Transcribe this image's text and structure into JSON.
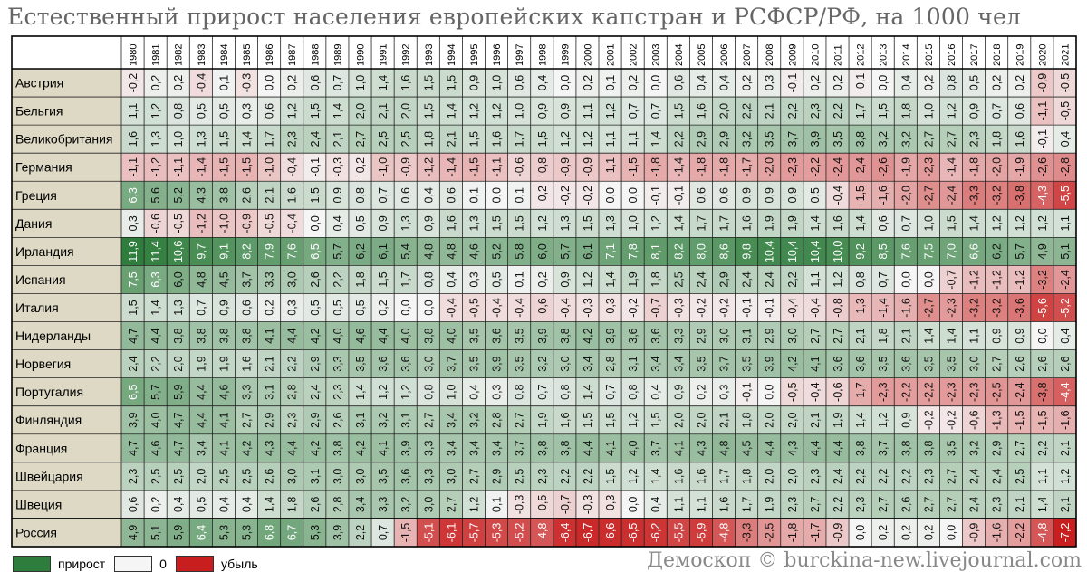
{
  "title": "Естественный прирост населения европейских капстран и РСФСР/РФ, на 1000 чел",
  "source": "Демоскоп © burckina-new.livejournal.com",
  "legend": {
    "positive_label": "прирост",
    "zero_label": "0",
    "negative_label": "убыль"
  },
  "colors": {
    "positive": "#2e7d3c",
    "zero": "#f5f5f5",
    "negative": "#c81e1e",
    "label_bg": "#ddd9c4",
    "grid": "#222222"
  },
  "chart_data": {
    "type": "heatmap",
    "title": "Естественный прирост населения европейских капстран и РСФСР/РФ, на 1000 чел",
    "years": [
      "1980",
      "1981",
      "1982",
      "1983",
      "1984",
      "1985",
      "1986",
      "1987",
      "1988",
      "1989",
      "1990",
      "1991",
      "1992",
      "1993",
      "1994",
      "1995",
      "1996",
      "1997",
      "1998",
      "1999",
      "2000",
      "2001",
      "2002",
      "2003",
      "2004",
      "2005",
      "2006",
      "2007",
      "2008",
      "2009",
      "2010",
      "2011",
      "2012",
      "2013",
      "2014",
      "2015",
      "2016",
      "2017",
      "2018",
      "2019",
      "2020",
      "2021"
    ],
    "color_scale": {
      "min": -7.2,
      "mid": 0,
      "max": 11.9
    },
    "rows": [
      {
        "name": "Австрия",
        "values": [
          -0.2,
          0.2,
          0.2,
          -0.4,
          0.1,
          -0.3,
          0.0,
          0.2,
          0.6,
          0.7,
          1.0,
          1.4,
          1.6,
          1.5,
          1.5,
          0.9,
          1.0,
          0.6,
          0.4,
          0.0,
          0.2,
          0.1,
          0.2,
          0.0,
          0.6,
          0.4,
          0.4,
          0.2,
          0.3,
          -0.1,
          0.2,
          0.2,
          -0.1,
          0.0,
          0.4,
          0.2,
          0.8,
          0.5,
          0.2,
          0.2,
          -0.9,
          -0.5
        ]
      },
      {
        "name": "Бельгия",
        "values": [
          1.1,
          1.2,
          0.8,
          0.5,
          0.5,
          0.3,
          0.6,
          1.2,
          1.5,
          1.4,
          2.0,
          2.1,
          2.0,
          1.5,
          1.4,
          1.2,
          1.2,
          1.0,
          0.9,
          0.9,
          1.1,
          1.2,
          0.7,
          0.7,
          1.5,
          1.6,
          2.0,
          2.2,
          2.1,
          2.2,
          2.3,
          2.2,
          1.7,
          1.5,
          1.8,
          1.0,
          1.2,
          0.9,
          0.7,
          0.6,
          -1.1,
          -0.5
        ]
      },
      {
        "name": "Великобритания",
        "values": [
          1.6,
          1.3,
          1.0,
          1.3,
          1.5,
          1.4,
          1.7,
          2.3,
          2.4,
          2.1,
          2.7,
          2.5,
          2.5,
          1.8,
          2.1,
          1.5,
          1.6,
          1.7,
          1.5,
          1.2,
          1.2,
          1.1,
          1.1,
          1.4,
          2.2,
          2.9,
          2.9,
          3.2,
          3.5,
          3.7,
          3.9,
          3.5,
          3.8,
          3.2,
          3.2,
          2.7,
          2.7,
          2.3,
          1.8,
          1.6,
          -0.1,
          0.4
        ]
      },
      {
        "name": "Германия",
        "values": [
          -1.1,
          -1.2,
          -1.1,
          -1.4,
          -1.5,
          -1.5,
          -1.0,
          -0.4,
          -0.1,
          -0.3,
          -0.2,
          -1.0,
          -0.9,
          -1.2,
          -1.4,
          -1.5,
          -1.1,
          -0.6,
          -0.8,
          -0.9,
          -0.9,
          -1.1,
          -1.5,
          -1.8,
          -1.4,
          -1.8,
          -1.8,
          -1.7,
          -2.0,
          -2.3,
          -2.2,
          -2.4,
          -2.4,
          -2.6,
          -1.9,
          -2.3,
          -1.4,
          -1.8,
          -2.0,
          -1.9,
          -2.6,
          -2.8
        ]
      },
      {
        "name": "Греция",
        "values": [
          6.3,
          5.6,
          5.2,
          4.3,
          3.8,
          2.6,
          2.1,
          1.6,
          1.5,
          0.9,
          0.8,
          0.7,
          0.6,
          0.4,
          0.6,
          0.1,
          0.0,
          0.1,
          -0.2,
          -0.2,
          -0.2,
          0.0,
          0.0,
          -0.1,
          -0.1,
          0.6,
          0.6,
          0.9,
          0.9,
          0.9,
          0.5,
          -0.4,
          -1.5,
          -1.6,
          -2.0,
          -2.7,
          -2.4,
          -3.3,
          -3.2,
          -3.8,
          -4.3,
          -5.5
        ]
      },
      {
        "name": "Дания",
        "values": [
          0.3,
          -0.6,
          -0.5,
          -1.2,
          -1.0,
          -0.9,
          -0.5,
          -0.4,
          0.0,
          0.4,
          0.5,
          0.9,
          1.3,
          0.9,
          1.6,
          1.3,
          1.5,
          1.5,
          1.2,
          1.3,
          1.5,
          1.3,
          1.0,
          1.2,
          1.4,
          1.7,
          1.7,
          1.6,
          1.9,
          1.9,
          1.4,
          1.6,
          1.4,
          0.6,
          0.7,
          1.0,
          1.5,
          1.4,
          1.2,
          1.2,
          1.2,
          1.1
        ]
      },
      {
        "name": "Ирландия",
        "values": [
          11.9,
          11.4,
          10.6,
          9.7,
          9.1,
          8.2,
          7.9,
          7.6,
          6.5,
          5.7,
          6.2,
          6.1,
          5.4,
          4.8,
          4.8,
          4.6,
          5.2,
          5.8,
          6.0,
          5.7,
          6.1,
          7.1,
          7.8,
          8.1,
          8.2,
          8.0,
          8.6,
          9.8,
          10.4,
          10.4,
          10.4,
          10.0,
          9.2,
          8.5,
          7.6,
          7.5,
          7.0,
          6.6,
          6.2,
          5.7,
          4.9,
          5.1
        ]
      },
      {
        "name": "Испания",
        "values": [
          7.5,
          6.3,
          6.0,
          4.8,
          4.5,
          3.7,
          3.3,
          3.0,
          2.6,
          2.2,
          1.8,
          1.5,
          1.7,
          0.8,
          0.4,
          0.3,
          0.5,
          0.1,
          0.2,
          0.9,
          1.2,
          1.4,
          1.9,
          1.8,
          2.5,
          2.4,
          2.9,
          2.4,
          2.4,
          2.2,
          1.1,
          1.2,
          0.8,
          0.7,
          0.0,
          0.0,
          -0.7,
          -1.2,
          -1.2,
          -1.2,
          -3.2,
          -2.4
        ]
      },
      {
        "name": "Италия",
        "values": [
          1.5,
          1.4,
          1.3,
          0.7,
          0.9,
          0.6,
          0.2,
          0.3,
          0.5,
          0.5,
          0.5,
          0.2,
          -0.0,
          0.0,
          -0.4,
          -0.5,
          -0.4,
          -0.4,
          -0.6,
          -0.4,
          -0.3,
          -0.3,
          -0.2,
          -0.7,
          -0.3,
          -0.2,
          -0.2,
          -0.1,
          -0.1,
          -0.4,
          -0.4,
          -0.8,
          -1.3,
          -1.4,
          -1.6,
          -2.7,
          -2.3,
          -3.2,
          -3.2,
          -3.6,
          -5.6,
          -5.2
        ]
      },
      {
        "name": "Нидерланды",
        "values": [
          4.7,
          4.4,
          3.8,
          3.8,
          3.8,
          3.8,
          4.1,
          4.4,
          4.2,
          4.0,
          4.6,
          4.4,
          4.0,
          3.8,
          4.0,
          3.5,
          3.6,
          3.5,
          3.9,
          3.8,
          4.2,
          3.9,
          3.6,
          3.6,
          3.3,
          2.9,
          3.0,
          3.1,
          2.9,
          3.0,
          2.7,
          2.7,
          2.1,
          1.8,
          2.1,
          1.4,
          1.4,
          1.1,
          0.9,
          0.9,
          0.0,
          0.4
        ]
      },
      {
        "name": "Норвегия",
        "values": [
          2.4,
          2.2,
          2.0,
          1.9,
          1.9,
          1.6,
          2.1,
          2.2,
          2.9,
          3.3,
          3.5,
          3.6,
          3.6,
          3.0,
          3.7,
          3.5,
          3.9,
          3.5,
          3.2,
          3.0,
          3.4,
          2.8,
          3.1,
          3.4,
          3.4,
          3.5,
          3.7,
          3.5,
          3.9,
          4.2,
          4.1,
          3.6,
          3.6,
          3.5,
          3.6,
          3.5,
          3.5,
          3.0,
          2.7,
          2.6,
          2.6,
          2.6
        ]
      },
      {
        "name": "Португалия",
        "values": [
          6.5,
          5.7,
          5.9,
          4.4,
          4.6,
          3.3,
          3.1,
          2.8,
          2.4,
          2.3,
          1.4,
          1.2,
          1.2,
          0.8,
          1.0,
          0.4,
          0.3,
          0.8,
          0.7,
          0.8,
          1.4,
          0.7,
          0.8,
          0.4,
          0.9,
          0.2,
          0.3,
          -0.1,
          0.0,
          -0.5,
          -0.4,
          -0.6,
          -1.7,
          -2.3,
          -2.2,
          -2.2,
          -2.3,
          -2.3,
          -2.5,
          -2.4,
          -3.8,
          -4.4
        ]
      },
      {
        "name": "Финляндия",
        "values": [
          3.9,
          4.0,
          4.7,
          4.4,
          4.1,
          2.7,
          2.9,
          2.3,
          2.9,
          2.6,
          3.1,
          3.2,
          3.1,
          2.7,
          3.4,
          3.2,
          2.8,
          2.7,
          1.9,
          1.6,
          1.5,
          1.5,
          1.2,
          1.5,
          2.0,
          2.0,
          2.1,
          1.8,
          2.0,
          2.0,
          2.1,
          1.9,
          1.4,
          1.2,
          0.9,
          -0.2,
          -0.2,
          -0.6,
          -1.3,
          -1.5,
          -1.5,
          -1.6
        ]
      },
      {
        "name": "Франция",
        "values": [
          4.7,
          4.6,
          4.7,
          3.4,
          4.1,
          4.2,
          4.3,
          4.4,
          4.2,
          3.8,
          4.2,
          4.1,
          3.9,
          3.3,
          3.4,
          3.4,
          3.4,
          3.7,
          3.8,
          3.8,
          4.4,
          4.1,
          4.0,
          3.7,
          4.1,
          4.3,
          4.8,
          4.5,
          4.4,
          4.3,
          4.4,
          4.4,
          3.8,
          3.7,
          3.8,
          3.8,
          3.5,
          3.2,
          2.9,
          2.7,
          2.2,
          2.1
        ]
      },
      {
        "name": "Швейцария",
        "values": [
          2.3,
          2.5,
          2.5,
          2.0,
          2.5,
          2.5,
          2.6,
          3.0,
          3.1,
          3.0,
          3.0,
          3.5,
          3.6,
          3.3,
          3.0,
          2.7,
          2.9,
          2.5,
          2.3,
          2.2,
          2.2,
          1.5,
          1.2,
          1.4,
          1.6,
          1.6,
          1.7,
          1.8,
          2.0,
          2.0,
          2.3,
          2.4,
          2.2,
          2.2,
          2.2,
          2.3,
          2.7,
          2.4,
          2.4,
          2.5,
          1.1,
          1.2
        ]
      },
      {
        "name": "Швеция",
        "values": [
          0.6,
          0.2,
          0.4,
          0.5,
          0.4,
          0.4,
          1.4,
          1.8,
          2.6,
          2.8,
          3.4,
          3.3,
          3.2,
          3.0,
          2.7,
          1.2,
          0.1,
          -0.3,
          -0.5,
          -0.7,
          -0.3,
          -0.3,
          0.0,
          0.4,
          1.1,
          1.1,
          1.6,
          1.7,
          1.9,
          2.3,
          2.7,
          2.2,
          2.3,
          2.7,
          2.6,
          2.7,
          2.7,
          2.4,
          2.3,
          2.1,
          1.4,
          2.1
        ]
      },
      {
        "name": "Россия",
        "values": [
          4.9,
          5.1,
          5.9,
          6.4,
          5.3,
          5.3,
          6.8,
          6.7,
          5.3,
          3.9,
          2.2,
          0.7,
          -1.5,
          -5.1,
          -6.1,
          -5.7,
          -5.3,
          -5.2,
          -4.8,
          -6.4,
          -6.7,
          -6.6,
          -6.5,
          -6.2,
          -5.5,
          -5.9,
          -4.8,
          -3.3,
          -2.5,
          -1.8,
          -1.7,
          -0.9,
          0.0,
          0.2,
          0.2,
          0.2,
          0.0,
          -0.9,
          -1.6,
          -2.2,
          -4.8,
          -7.2
        ]
      }
    ]
  }
}
